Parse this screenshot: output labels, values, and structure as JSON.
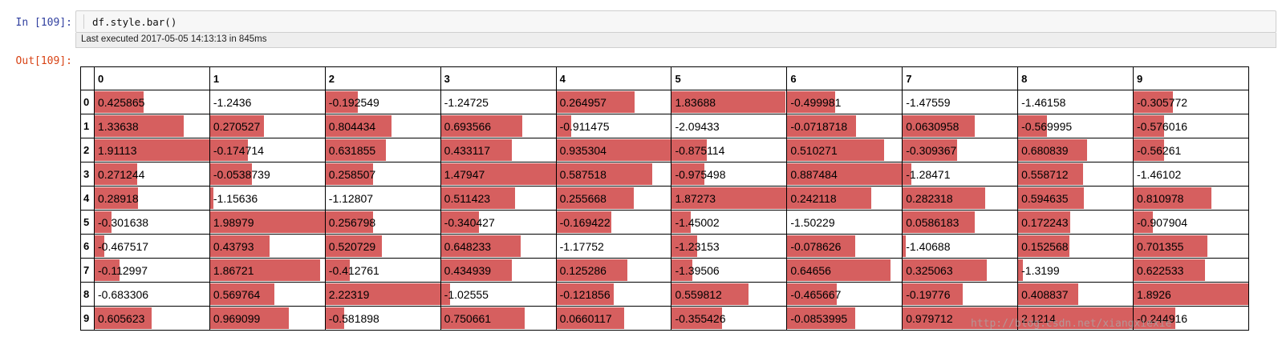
{
  "cell": {
    "in_prompt": "In  [109]:",
    "out_prompt": "Out[109]:",
    "code": "df.style.bar()",
    "exec_info": "Last executed 2017-05-05 14:13:13 in 845ms"
  },
  "colors": {
    "bar": "#d65f5f",
    "in_prompt": "#303f9f",
    "out_prompt": "#d84315"
  },
  "table": {
    "columns": [
      "0",
      "1",
      "2",
      "3",
      "4",
      "5",
      "6",
      "7",
      "8",
      "9"
    ],
    "index": [
      "0",
      "1",
      "2",
      "3",
      "4",
      "5",
      "6",
      "7",
      "8",
      "9"
    ],
    "rows": [
      [
        "0.425865",
        "-1.2436",
        "-0.192549",
        "-1.24725",
        "0.264957",
        "1.83688",
        "-0.499981",
        "-1.47559",
        "-1.46158",
        "-0.305772"
      ],
      [
        "1.33638",
        "0.270527",
        "0.804434",
        "0.693566",
        "-0.911475",
        "-2.09433",
        "-0.0718718",
        "0.0630958",
        "-0.569995",
        "-0.576016"
      ],
      [
        "1.91113",
        "-0.174714",
        "0.631855",
        "0.433117",
        "0.935304",
        "-0.875114",
        "0.510271",
        "-0.309367",
        "0.680839",
        "-0.56261"
      ],
      [
        "0.271244",
        "-0.0538739",
        "0.258507",
        "1.47947",
        "0.587518",
        "-0.975498",
        "0.887484",
        "-1.28471",
        "0.558712",
        "-1.46102"
      ],
      [
        "0.28918",
        "-1.15636",
        "-1.12807",
        "0.511423",
        "0.255668",
        "1.87273",
        "0.242118",
        "0.282318",
        "0.594635",
        "0.810978"
      ],
      [
        "-0.301638",
        "1.98979",
        "0.256798",
        "-0.340427",
        "-0.169422",
        "-1.45002",
        "-1.50229",
        "0.0586183",
        "0.172243",
        "-0.907904"
      ],
      [
        "-0.467517",
        "0.43793",
        "0.520729",
        "0.648233",
        "-1.17752",
        "-1.23153",
        "-0.078626",
        "-1.40688",
        "0.152568",
        "0.701355"
      ],
      [
        "-0.112997",
        "1.86721",
        "-0.412761",
        "0.434939",
        "0.125286",
        "-1.39506",
        "0.64656",
        "0.325063",
        "-1.3199",
        "0.622533"
      ],
      [
        "-0.683306",
        "0.569764",
        "2.22319",
        "-1.02555",
        "-0.121856",
        "0.559812",
        "-0.465667",
        "-0.19776",
        "0.408837",
        "1.8926"
      ],
      [
        "0.605623",
        "0.969099",
        "-0.581898",
        "0.750661",
        "0.0660117",
        "-0.355426",
        "-0.0853995",
        "0.979712",
        "2.1214",
        "-0.244916"
      ]
    ]
  },
  "watermark": "http://blog.csdn.net/xiangxiexie"
}
